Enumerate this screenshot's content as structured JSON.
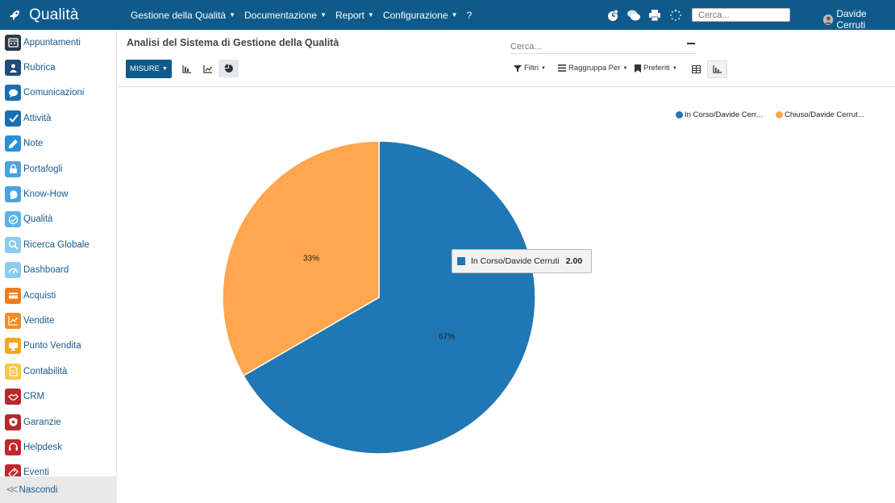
{
  "app": {
    "title": "Qualità"
  },
  "topmenu": [
    {
      "label": "Gestione della Qualità",
      "dropdown": true
    },
    {
      "label": "Documentazione",
      "dropdown": true
    },
    {
      "label": "Report",
      "dropdown": true
    },
    {
      "label": "Configurazione",
      "dropdown": true
    },
    {
      "label": "?",
      "dropdown": false
    }
  ],
  "systray": {
    "search_placeholder": "Cerca...",
    "user_name": "Davide Cerruti"
  },
  "sidebar": {
    "items": [
      {
        "label": "Appuntamenti",
        "icon": "calendar-icon",
        "color": "#2e3a4a"
      },
      {
        "label": "Rubrica",
        "icon": "contacts-icon",
        "color": "#1f4e79"
      },
      {
        "label": "Comunicazioni",
        "icon": "chat-icon",
        "color": "#1a6fb0"
      },
      {
        "label": "Attività",
        "icon": "check-icon",
        "color": "#1a6fb0"
      },
      {
        "label": "Note",
        "icon": "note-icon",
        "color": "#2a8fd6"
      },
      {
        "label": "Portafogli",
        "icon": "lock-icon",
        "color": "#4aa3df"
      },
      {
        "label": "Know-How",
        "icon": "head-icon",
        "color": "#4aa3df"
      },
      {
        "label": "Qualità",
        "icon": "quality-icon",
        "color": "#5ab4e8"
      },
      {
        "label": "Ricerca Globale",
        "icon": "search-icon",
        "color": "#8ccbf0"
      },
      {
        "label": "Dashboard",
        "icon": "dashboard-icon",
        "color": "#8ccbf0"
      },
      {
        "label": "Acquisti",
        "icon": "card-icon",
        "color": "#f07c1e"
      },
      {
        "label": "Vendite",
        "icon": "chart-icon",
        "color": "#f08c2a"
      },
      {
        "label": "Punto Vendita",
        "icon": "monitor-icon",
        "color": "#f5a623"
      },
      {
        "label": "Contabilità",
        "icon": "document-icon",
        "color": "#f7c948"
      },
      {
        "label": "CRM",
        "icon": "handshake-icon",
        "color": "#b52a2a"
      },
      {
        "label": "Garanzie",
        "icon": "shield-icon",
        "color": "#b52a2a"
      },
      {
        "label": "Helpdesk",
        "icon": "headset-icon",
        "color": "#c0282d"
      },
      {
        "label": "Eventi",
        "icon": "ticket-icon",
        "color": "#c0282d"
      }
    ],
    "hide_label": "Nascondi"
  },
  "control_panel": {
    "title": "Analisi del Sistema di Gestione della Qualità",
    "search_placeholder": "Cerca...",
    "misure_label": "MISURE",
    "filter_label": "Filtri",
    "group_label": "Raggruppa Per",
    "fav_label": "Preferiti"
  },
  "chart_data": {
    "type": "pie",
    "series": [
      {
        "name": "In Corso/Davide Cerruti",
        "legend_label": "In Corso/Davide Cerr...",
        "value": 2,
        "percent_label": "67%",
        "color": "#1f77b4"
      },
      {
        "name": "Chiuso/Davide Cerruti",
        "legend_label": "Chiuso/Davide Cerrut...",
        "value": 1,
        "percent_label": "33%",
        "color": "#ffa64f"
      }
    ],
    "legend_position": "top-right"
  },
  "tooltip": {
    "label": "In Corso/Davide Cerruti",
    "value": "2.00"
  }
}
